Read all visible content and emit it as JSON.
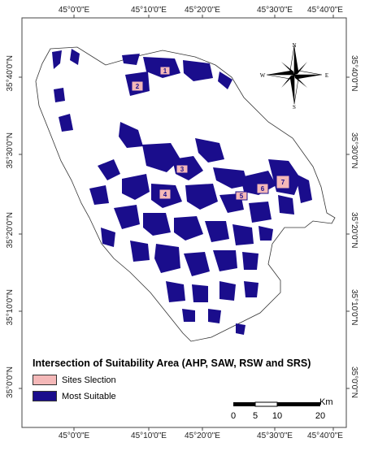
{
  "axes": {
    "top_labels": [
      "45°0'0\"E",
      "45°10'0\"E",
      "45°20'0\"E",
      "45°30'0\"E",
      "45°40'0\"E"
    ],
    "bottom_labels": [
      "45°0'0\"E",
      "45°10'0\"E",
      "45°20'0\"E",
      "45°30'0\"E",
      "45°40'0\"E"
    ],
    "left_labels": [
      "35°40'0\"N",
      "35°30'0\"N",
      "35°20'0\"N",
      "35°10'0\"N",
      "35°0'0\"N"
    ],
    "right_labels": [
      "35°40'0\"N",
      "35°30'0\"N",
      "35°20'0\"N",
      "35°10'0\"N",
      "35°0'0\"N"
    ]
  },
  "compass": {
    "n": "N",
    "s": "S",
    "e": "E",
    "w": "W"
  },
  "sites": [
    "1",
    "2",
    "3",
    "4",
    "5",
    "6",
    "7"
  ],
  "legend": {
    "title": "Intersection of Suitability Area (AHP, SAW, RSW and SRS)",
    "items": [
      {
        "label": "Sites Slection",
        "color": "#f4b8b8"
      },
      {
        "label": "Most Suitable",
        "color": "#1a0d8c"
      }
    ]
  },
  "scale": {
    "ticks": [
      "0",
      "5",
      "10",
      "20"
    ],
    "unit": "Km"
  },
  "colors": {
    "suitable": "#1a0d8c",
    "site": "#f4b8b8",
    "boundary": "#333333"
  }
}
